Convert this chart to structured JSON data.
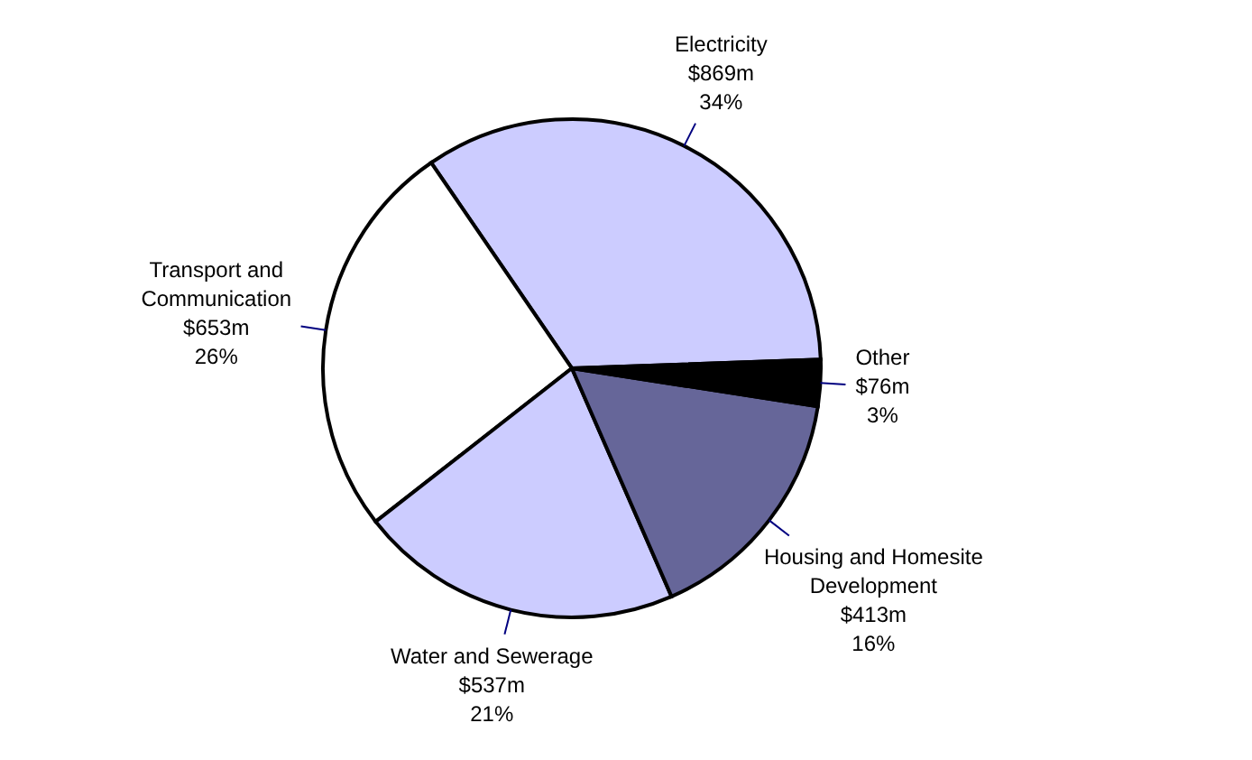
{
  "chart_data": {
    "type": "pie",
    "categories": [
      "Electricity",
      "Transport and Communication",
      "Water and Sewerage",
      "Housing and Homesite Development",
      "Other"
    ],
    "values": [
      34,
      26,
      21,
      16,
      3
    ],
    "value_labels": [
      "$869m\n34%",
      "$653m\n26%",
      "$537m\n21%",
      "$413m\n16%",
      "$76m\n3%"
    ],
    "colors": [
      "#ccccff",
      "#ffffff",
      "#ccccff",
      "#666699",
      "#000000"
    ],
    "legend": false
  }
}
